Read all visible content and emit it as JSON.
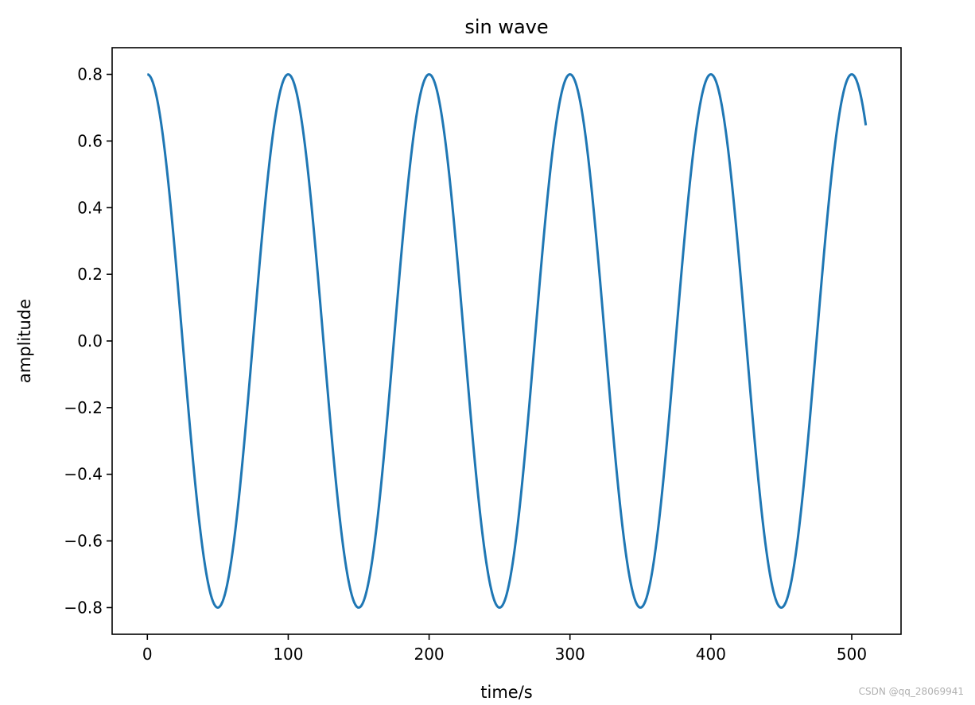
{
  "chart_data": {
    "type": "line",
    "title": "sin wave",
    "xlabel": "time/s",
    "ylabel": "amplitude",
    "xlim": [
      -25,
      535
    ],
    "ylim": [
      -0.88,
      0.88
    ],
    "xticks": [
      0,
      100,
      200,
      300,
      400,
      500
    ],
    "xtick_labels": [
      "0",
      "100",
      "200",
      "300",
      "400",
      "500"
    ],
    "yticks": [
      -0.8,
      -0.6,
      -0.4,
      -0.2,
      0.0,
      0.2,
      0.4,
      0.6,
      0.8
    ],
    "ytick_labels": [
      "−0.8",
      "−0.6",
      "−0.4",
      "−0.2",
      "0.0",
      "0.2",
      "0.4",
      "0.6",
      "0.8"
    ],
    "grid": false,
    "series": [
      {
        "color": "#1f77b4",
        "amplitude": 0.8,
        "period": 100,
        "phase": "cosine",
        "x_start": 0,
        "x_end": 510
      }
    ]
  },
  "watermark": "CSDN @qq_28069941"
}
